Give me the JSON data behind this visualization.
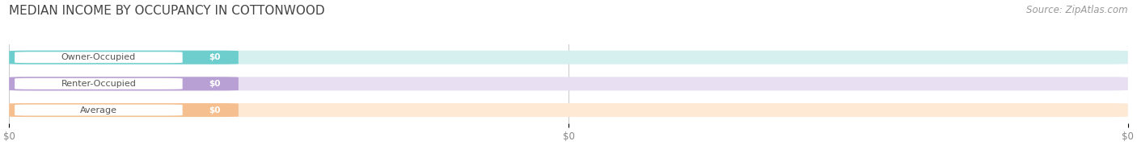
{
  "title": "MEDIAN INCOME BY OCCUPANCY IN COTTONWOOD",
  "source": "Source: ZipAtlas.com",
  "categories": [
    "Owner-Occupied",
    "Renter-Occupied",
    "Average"
  ],
  "values": [
    0,
    0,
    0
  ],
  "bar_colors": [
    "#6ecece",
    "#b89fd4",
    "#f5bf90"
  ],
  "bar_bg_colors": [
    "#d6efef",
    "#e8dff2",
    "#fde9d4"
  ],
  "label_color": "#555555",
  "value_labels": [
    "$0",
    "$0",
    "$0"
  ],
  "x_tick_labels": [
    "$0",
    "$0",
    "$0"
  ],
  "x_tick_positions": [
    0.0,
    0.5,
    1.0
  ],
  "xlim": [
    0.0,
    1.0
  ],
  "background_color": "#ffffff",
  "title_fontsize": 11,
  "source_fontsize": 8.5,
  "bar_height": 0.52,
  "figsize": [
    14.06,
    1.96
  ]
}
